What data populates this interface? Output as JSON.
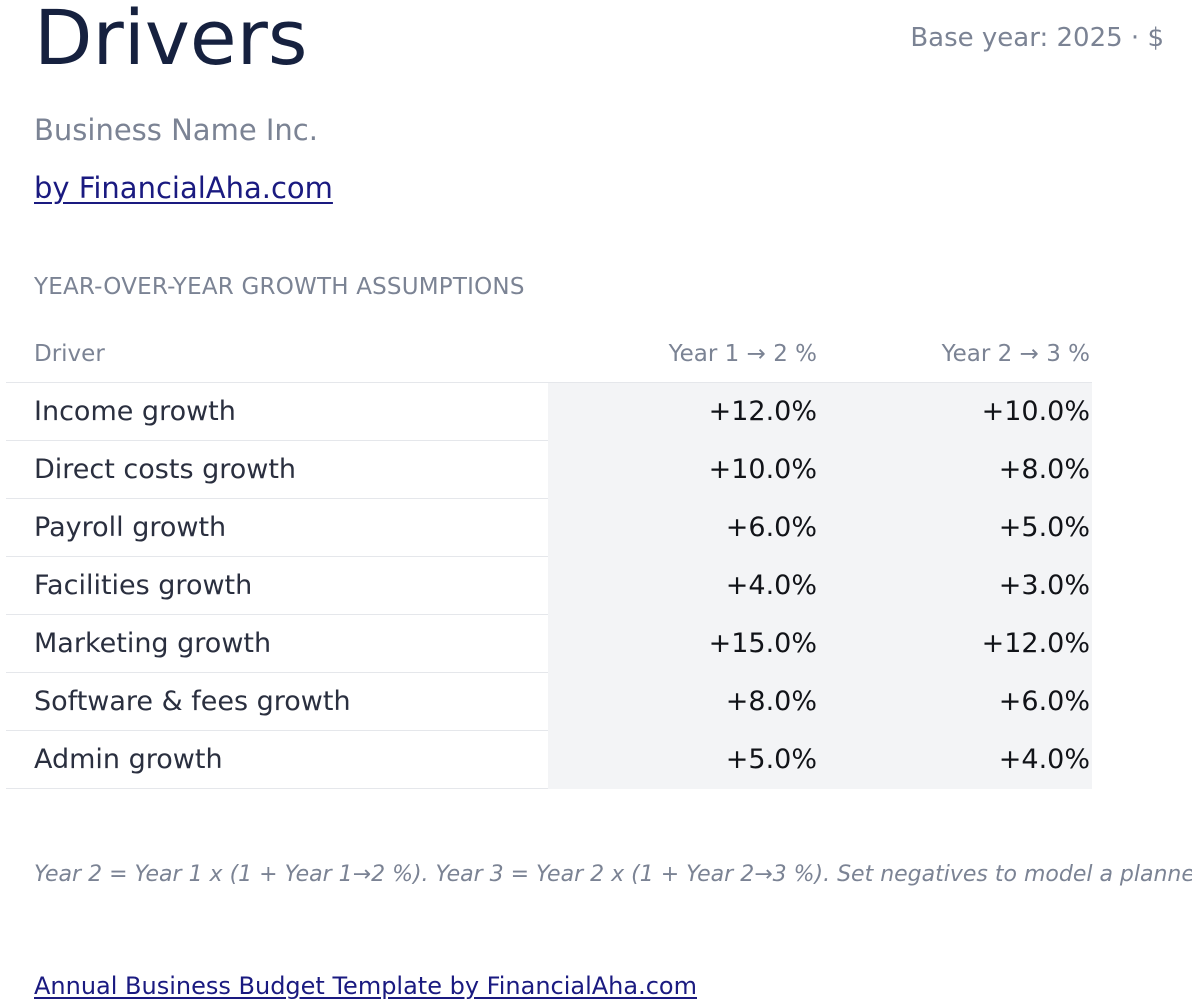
{
  "header": {
    "title": "Drivers",
    "base_year": "Base year: 2025 · $",
    "company": "Business Name Inc.",
    "byline": "by FinancialAha.com"
  },
  "section": {
    "heading": "YEAR-OVER-YEAR GROWTH ASSUMPTIONS"
  },
  "table": {
    "columns": [
      "Driver",
      "Year 1 → 2 %",
      "Year 2 → 3 %"
    ],
    "rows": [
      {
        "driver": "Income growth",
        "y1_2": "+12.0%",
        "y2_3": "+10.0%"
      },
      {
        "driver": "Direct costs growth",
        "y1_2": "+10.0%",
        "y2_3": "+8.0%"
      },
      {
        "driver": "Payroll growth",
        "y1_2": "+6.0%",
        "y2_3": "+5.0%"
      },
      {
        "driver": "Facilities growth",
        "y1_2": "+4.0%",
        "y2_3": "+3.0%"
      },
      {
        "driver": "Marketing growth",
        "y1_2": "+15.0%",
        "y2_3": "+12.0%"
      },
      {
        "driver": "Software & fees growth",
        "y1_2": "+8.0%",
        "y2_3": "+6.0%"
      },
      {
        "driver": "Admin growth",
        "y1_2": "+5.0%",
        "y2_3": "+4.0%"
      }
    ]
  },
  "note": "Year 2 = Year 1 x (1 + Year 1→2 %). Year 3 = Year 2 x (1 + Year 2→3 %). Set negatives to model a planne",
  "footer": {
    "link": "Annual Business Budget Template by FinancialAha.com"
  },
  "colors": {
    "title": "#16213f",
    "muted": "#7b8394",
    "link": "#1a1a80",
    "input_cell_bg": "#f3f4f6"
  }
}
